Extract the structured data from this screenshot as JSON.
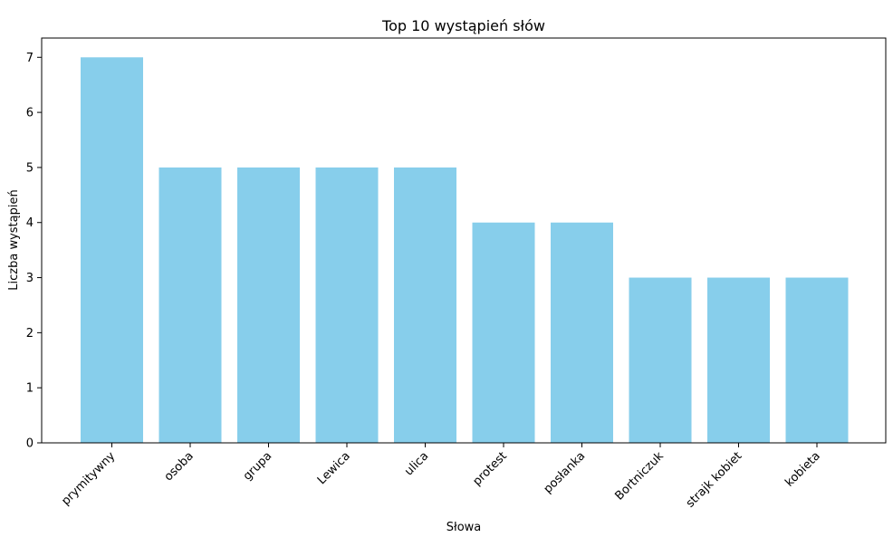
{
  "chart_data": {
    "type": "bar",
    "title": "Top 10 wystąpień słów",
    "xlabel": "Słowa",
    "ylabel": "Liczba wystąpień",
    "categories": [
      "prymitywny",
      "osoba",
      "grupa",
      "Lewica",
      "ulica",
      "protest",
      "posłanka",
      "Bortniczuk",
      "strajk kobiet",
      "kobieta"
    ],
    "values": [
      7,
      5,
      5,
      5,
      5,
      4,
      4,
      3,
      3,
      3
    ],
    "ylim": [
      0,
      7.35
    ],
    "yticks": [
      0,
      1,
      2,
      3,
      4,
      5,
      6,
      7
    ],
    "bar_color": "#87CEEB",
    "grid": false,
    "legend": "none"
  }
}
